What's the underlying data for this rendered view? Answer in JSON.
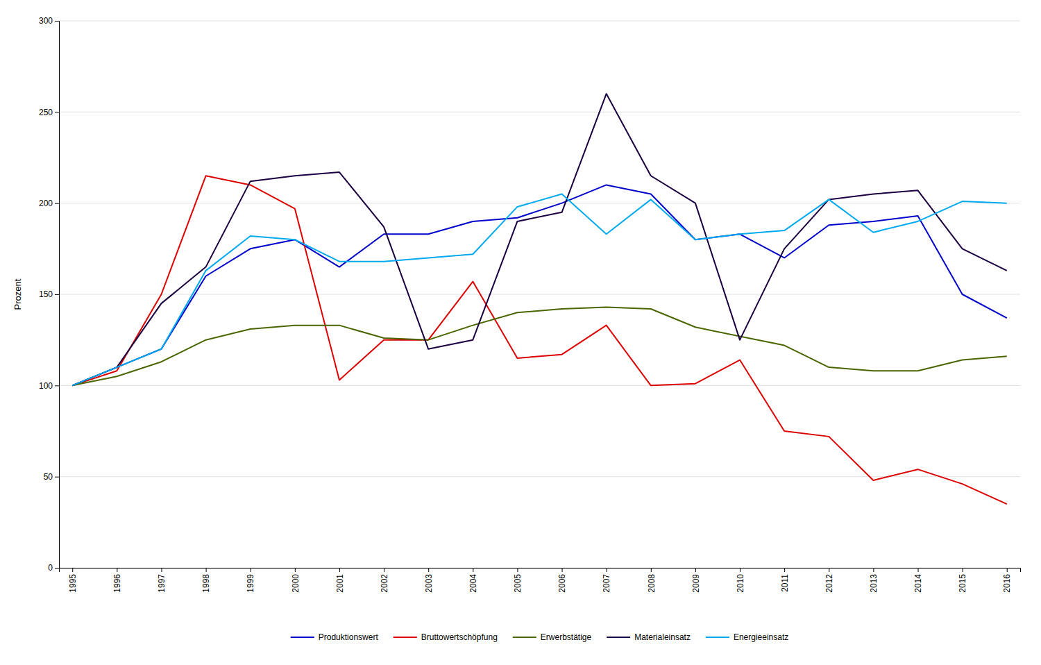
{
  "chart_data": {
    "type": "line",
    "x": [
      1995,
      1996,
      1997,
      1998,
      1999,
      2000,
      2001,
      2002,
      2003,
      2004,
      2005,
      2006,
      2007,
      2008,
      2009,
      2010,
      2011,
      2012,
      2013,
      2014,
      2015,
      2016
    ],
    "series": [
      {
        "name": "Produktionswert",
        "color": "#0000cc",
        "values": [
          100,
          110,
          120,
          160,
          175,
          180,
          165,
          183,
          183,
          190,
          192,
          200,
          210,
          205,
          180,
          183,
          170,
          188,
          190,
          193,
          150,
          137
        ]
      },
      {
        "name": "Bruttowertschöpfung",
        "color": "#dd0000",
        "values": [
          100,
          108,
          150,
          215,
          210,
          197,
          103,
          125,
          125,
          157,
          115,
          117,
          133,
          100,
          101,
          114,
          75,
          72,
          48,
          54,
          46,
          35
        ]
      },
      {
        "name": "Erwerbstätige",
        "color": "#4a6600",
        "values": [
          100,
          105,
          113,
          125,
          131,
          133,
          133,
          126,
          125,
          133,
          140,
          142,
          143,
          142,
          132,
          127,
          122,
          110,
          108,
          108,
          114,
          116
        ]
      },
      {
        "name": "Materialeinsatz",
        "color": "#1a0040",
        "values": [
          100,
          110,
          145,
          165,
          212,
          215,
          217,
          187,
          120,
          125,
          190,
          195,
          260,
          215,
          200,
          125,
          175,
          202,
          205,
          207,
          175,
          163
        ]
      },
      {
        "name": "Energieeinsatz",
        "color": "#00aaee",
        "values": [
          100,
          110,
          120,
          163,
          182,
          180,
          168,
          168,
          170,
          172,
          198,
          205,
          183,
          202,
          180,
          183,
          185,
          202,
          184,
          190,
          201,
          200
        ]
      }
    ],
    "y_label": "Prozent",
    "xlim": [
      1994.7,
      2016.3
    ],
    "xticks": [
      1995,
      1996,
      1997,
      1998,
      1999,
      2000,
      2001,
      2002,
      2003,
      2004,
      2005,
      2006,
      2007,
      2008,
      2009,
      2010,
      2011,
      2012,
      2013,
      2014,
      2015,
      2016
    ],
    "ylim": [
      0,
      300
    ],
    "yticks": [
      0,
      50,
      100,
      150,
      200,
      250,
      300
    ],
    "grid": "y",
    "legend": "bottom"
  }
}
